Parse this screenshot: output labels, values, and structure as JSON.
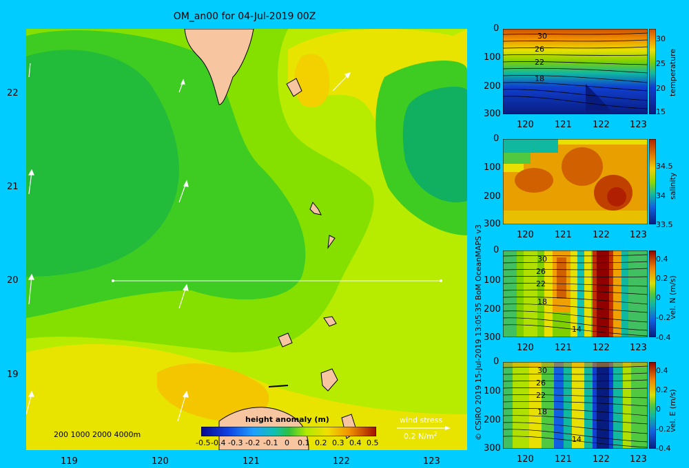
{
  "title": "OM_an00 for 04-Jul-2019 00Z",
  "map": {
    "x_ticks": [
      "119",
      "120",
      "121",
      "122",
      "123"
    ],
    "y_ticks": [
      "22",
      "21",
      "20",
      "19"
    ],
    "depth_legend": "200  1000  2000  4000m",
    "colorbar_title": "height anomaly (m)",
    "colorbar_ticks": [
      "-0.5",
      "-0.4",
      "-0.3",
      "-0.2",
      "-0.1",
      "0",
      "0.1",
      "0.2",
      "0.3",
      "0.4",
      "0.5"
    ],
    "wind_label": "wind stress",
    "wind_scale": "0.2 N/m",
    "wind_scale_sup": "2"
  },
  "panels": [
    {
      "id": "temperature",
      "label": "temperature",
      "y_ticks": [
        "0",
        "100",
        "200",
        "300"
      ],
      "x_ticks": [
        "120",
        "121",
        "122",
        "123"
      ],
      "cb_ticks": [
        "30",
        "25",
        "20",
        "15"
      ],
      "contours": [
        "30",
        "26",
        "22",
        "18"
      ]
    },
    {
      "id": "salinity",
      "label": "salinity",
      "y_ticks": [
        "0",
        "100",
        "200",
        "300"
      ],
      "x_ticks": [
        "120",
        "121",
        "122",
        "123"
      ],
      "cb_ticks": [
        "34.5",
        "34",
        "33.5"
      ],
      "contours": []
    },
    {
      "id": "veln",
      "label": "vel. N (m/s)",
      "y_ticks": [
        "0",
        "100",
        "200",
        "300"
      ],
      "x_ticks": [
        "120",
        "121",
        "122",
        "123"
      ],
      "cb_ticks": [
        "0.4",
        "0.2",
        "0",
        "-0.2",
        "-0.4"
      ],
      "contours": [
        "30",
        "26",
        "22",
        "18",
        "14"
      ]
    },
    {
      "id": "vele",
      "label": "vel. E (m/s)",
      "y_ticks": [
        "0",
        "100",
        "200",
        "300"
      ],
      "x_ticks": [
        "120",
        "121",
        "122",
        "123"
      ],
      "cb_ticks": [
        "0.4",
        "0.2",
        "0",
        "-0.2",
        "-0.4"
      ],
      "contours": [
        "30",
        "26",
        "22",
        "18",
        "14"
      ]
    }
  ],
  "credit": "© CSIRO 2019  15-Jul-2019 13:05:35 BoM OceanMAPS v3",
  "colors": {
    "background": "#00ccff",
    "land": "#f7c6a0"
  }
}
